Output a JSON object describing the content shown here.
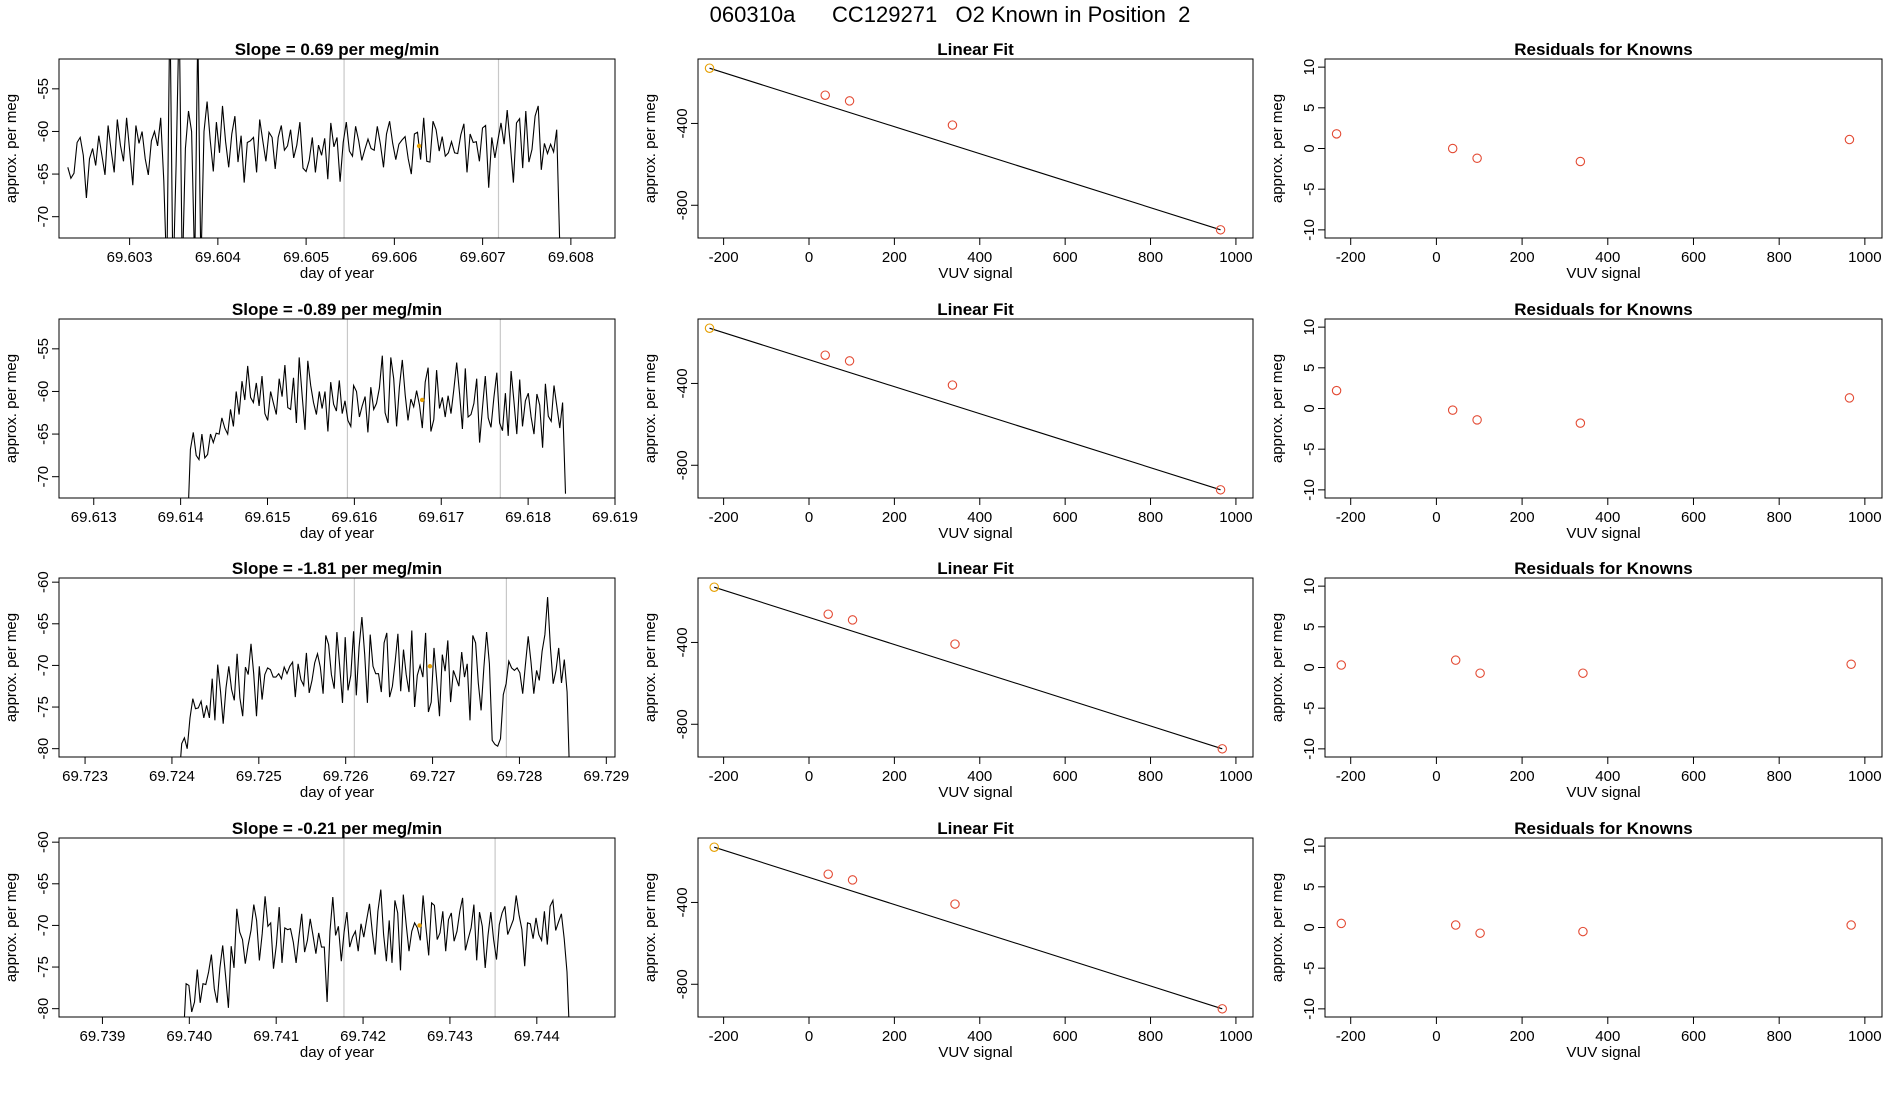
{
  "title": "060310a      CC129271   O2 Known in Position  2",
  "colors": {
    "line": "#000000",
    "frame": "#000000",
    "grid": "#c8c8c8",
    "highlight": "#e69f00",
    "residual": "#e34a33"
  },
  "chart_data": [
    {
      "type": "line",
      "row": 1,
      "title": "Slope =  0.69  per meg/min",
      "xlabel": "day of year",
      "ylabel": "approx. per meg",
      "xlim": [
        69.6022,
        69.6085
      ],
      "ylim": [
        -72.5,
        -51.5
      ],
      "xticks": [
        "69.603",
        "69.604",
        "69.605",
        "69.606",
        "69.607",
        "69.608"
      ],
      "yticks": [
        "-55",
        "-60",
        "-65",
        "-70"
      ],
      "vlines": [
        69.60543,
        69.60718
      ],
      "series_x_range": [
        69.6023,
        69.60791
      ],
      "series": [
        -64.2,
        -65.5,
        -64.9,
        -61.3,
        -60.7,
        -62.8,
        -67.8,
        -63.2,
        -62.0,
        -64.0,
        -60.5,
        -62.8,
        -65.1,
        -59.3,
        -62.2,
        -64.8,
        -58.6,
        -61.6,
        -63.5,
        -58.4,
        -62.3,
        -66.3,
        -59.3,
        -61.4,
        -60.0,
        -63.2,
        -65.1,
        -61.1,
        -60.0,
        -61.7,
        -58.4,
        -65.8,
        -77.0,
        -45.0,
        -78.0,
        -64.0,
        -46.0,
        -77.0,
        -62.0,
        -57.6,
        -60.0,
        -76.0,
        -48.0,
        -76.0,
        -60.0,
        -56.5,
        -61.0,
        -64.7,
        -58.9,
        -62.5,
        -57.0,
        -61.2,
        -64.2,
        -60.3,
        -58.2,
        -63.6,
        -60.5,
        -66.0,
        -61.3,
        -61.1,
        -60.7,
        -64.8,
        -58.6,
        -61.1,
        -63.5,
        -60.1,
        -60.7,
        -64.4,
        -60.7,
        -59.3,
        -62.2,
        -61.7,
        -59.8,
        -63.1,
        -61.6,
        -58.9,
        -64.3,
        -64.7,
        -63.4,
        -60.7,
        -64.8,
        -61.6,
        -62.8,
        -60.8,
        -65.6,
        -59.0,
        -61.8,
        -60.7,
        -65.9,
        -61.3,
        -58.9,
        -62.3,
        -62.9,
        -59.4,
        -61.1,
        -63.4,
        -62.1,
        -60.9,
        -62.0,
        -62.2,
        -59.4,
        -61.5,
        -64.2,
        -60.3,
        -58.8,
        -61.4,
        -63.3,
        -61.5,
        -61.0,
        -60.6,
        -63.2,
        -65.0,
        -60.3,
        -60.1,
        -63.3,
        -58.4,
        -63.5,
        -63.6,
        -58.8,
        -59.8,
        -62.3,
        -60.6,
        -62.9,
        -62.5,
        -61.2,
        -62.5,
        -62.6,
        -60.4,
        -59.1,
        -64.8,
        -60.3,
        -61.3,
        -61.2,
        -63.5,
        -59.6,
        -59.3,
        -66.6,
        -60.7,
        -63.1,
        -61.0,
        -59.0,
        -61.5,
        -57.5,
        -61.5,
        -66.0,
        -59.0,
        -58.5,
        -64.3,
        -57.6,
        -63.6,
        -62.1,
        -58.2,
        -57.0,
        -64.5,
        -61.4,
        -62.6,
        -61.5,
        -62.4,
        -59.8,
        -73.5,
        -80.0
      ],
      "marker": {
        "x": 69.60628,
        "y": -61.7
      }
    },
    {
      "type": "line",
      "row": 2,
      "title": "Slope =  -0.89  per meg/min",
      "xlabel": "day of year",
      "ylabel": "approx. per meg",
      "xlim": [
        69.6126,
        69.619
      ],
      "ylim": [
        -72.5,
        -51.5
      ],
      "xticks": [
        "69.613",
        "69.614",
        "69.615",
        "69.616",
        "69.617",
        "69.618",
        "69.619"
      ],
      "yticks": [
        "-55",
        "-60",
        "-65",
        "-70"
      ],
      "vlines": [
        69.61592,
        69.61768
      ],
      "series_x_range": [
        69.61408,
        69.61843
      ],
      "series": [
        -76.0,
        -66.8,
        -64.8,
        -67.5,
        -68.0,
        -65.0,
        -67.8,
        -67.4,
        -65.0,
        -66.0,
        -64.9,
        -65.0,
        -63.1,
        -64.3,
        -65.0,
        -62.1,
        -64.1,
        -60.0,
        -62.7,
        -58.8,
        -61.0,
        -57.0,
        -60.7,
        -61.3,
        -59.0,
        -61.7,
        -58.2,
        -62.6,
        -63.4,
        -60.0,
        -61.4,
        -62.7,
        -58.5,
        -60.6,
        -56.9,
        -61.9,
        -62.1,
        -58.4,
        -63.7,
        -56.0,
        -60.4,
        -64.5,
        -56.4,
        -59.3,
        -61.3,
        -62.7,
        -60.0,
        -62.0,
        -60.0,
        -64.7,
        -58.9,
        -61.5,
        -62.3,
        -58.7,
        -62.6,
        -61.1,
        -63.4,
        -64.1,
        -59.3,
        -60.0,
        -63.0,
        -61.7,
        -60.6,
        -64.8,
        -59.5,
        -62.1,
        -61.4,
        -59.6,
        -55.8,
        -62.5,
        -63.7,
        -56.0,
        -58.5,
        -64.1,
        -59.5,
        -56.3,
        -60.4,
        -63.4,
        -60.9,
        -61.8,
        -59.9,
        -61.6,
        -64.3,
        -58.9,
        -57.2,
        -64.7,
        -63.3,
        -57.5,
        -62.0,
        -60.7,
        -63.0,
        -60.5,
        -62.6,
        -59.8,
        -56.6,
        -60.3,
        -64.4,
        -57.3,
        -63.0,
        -62.7,
        -61.4,
        -58.5,
        -66.0,
        -61.9,
        -58.2,
        -63.1,
        -64.2,
        -60.7,
        -57.8,
        -63.7,
        -64.6,
        -60.2,
        -65.2,
        -57.6,
        -61.1,
        -65.0,
        -58.6,
        -64.1,
        -61.1,
        -60.2,
        -63.0,
        -65.0,
        -60.3,
        -61.6,
        -66.6,
        -59.1,
        -62.9,
        -63.5,
        -59.3,
        -61.8,
        -64.3,
        -61.3,
        -72.0
      ],
      "marker": {
        "x": 69.61678,
        "y": -61.0
      }
    },
    {
      "type": "line",
      "row": 3,
      "title": "Slope =  -1.81  per meg/min",
      "xlabel": "day of year",
      "ylabel": "approx. per meg",
      "xlim": [
        69.7227,
        69.7291
      ],
      "ylim": [
        -81.0,
        -59.5
      ],
      "xticks": [
        "69.723",
        "69.724",
        "69.725",
        "69.726",
        "69.727",
        "69.728",
        "69.729"
      ],
      "yticks": [
        "-60",
        "-65",
        "-70",
        "-75",
        "-80"
      ],
      "vlines": [
        69.7261,
        69.72785
      ],
      "series_x_range": [
        69.72408,
        69.72858
      ],
      "series": [
        -84.0,
        -79.4,
        -78.7,
        -80.0,
        -76.3,
        -74.0,
        -75.2,
        -75.1,
        -74.3,
        -76.3,
        -74.8,
        -76.3,
        -71.6,
        -76.6,
        -69.9,
        -73.1,
        -77.0,
        -72.7,
        -70.1,
        -72.9,
        -74.2,
        -68.6,
        -73.9,
        -76.1,
        -70.2,
        -71.1,
        -67.4,
        -71.0,
        -76.1,
        -70.1,
        -74.1,
        -71.1,
        -70.3,
        -70.5,
        -71.4,
        -71.4,
        -71.0,
        -71.6,
        -70.2,
        -71.0,
        -70.1,
        -69.6,
        -73.8,
        -69.8,
        -71.7,
        -72.4,
        -68.5,
        -73.3,
        -71.8,
        -69.7,
        -68.6,
        -70.2,
        -73.4,
        -66.4,
        -67.5,
        -71.1,
        -72.8,
        -66.0,
        -70.1,
        -74.5,
        -66.6,
        -73.0,
        -71.2,
        -65.9,
        -73.6,
        -67.8,
        -64.2,
        -68.7,
        -74.5,
        -66.3,
        -70.1,
        -71.0,
        -71.0,
        -73.2,
        -67.3,
        -66.1,
        -73.8,
        -72.5,
        -69.5,
        -66.2,
        -73.1,
        -68.1,
        -71.1,
        -73.2,
        -65.8,
        -75.0,
        -71.2,
        -70.0,
        -71.4,
        -66.1,
        -75.6,
        -74.4,
        -67.9,
        -71.7,
        -76.1,
        -68.7,
        -70.7,
        -67.0,
        -74.4,
        -70.6,
        -71.5,
        -72.5,
        -68.4,
        -71.4,
        -69.8,
        -76.6,
        -66.4,
        -67.3,
        -72.1,
        -75.4,
        -70.2,
        -66.0,
        -69.8,
        -79.0,
        -79.5,
        -79.7,
        -78.8,
        -73.5,
        -72.2,
        -69.5,
        -70.3,
        -70.6,
        -70.3,
        -70.9,
        -73.4,
        -69.8,
        -66.5,
        -69.6,
        -73.4,
        -70.6,
        -71.8,
        -68.3,
        -66.3,
        -61.8,
        -67.8,
        -72.2,
        -70.6,
        -67.9,
        -72.1,
        -69.3,
        -73.2,
        -84.0
      ],
      "marker": {
        "x": 69.72697,
        "y": -70.1
      }
    },
    {
      "type": "line",
      "row": 4,
      "title": "Slope =  -0.21  per meg/min",
      "xlabel": "day of year",
      "ylabel": "approx. per meg",
      "xlim": [
        69.7385,
        69.7449
      ],
      "ylim": [
        -81.0,
        -59.5
      ],
      "xticks": [
        "69.739",
        "69.740",
        "69.741",
        "69.742",
        "69.743",
        "69.744"
      ],
      "yticks": [
        "-60",
        "-65",
        "-70",
        "-75",
        "-80"
      ],
      "vlines": [
        69.74178,
        69.74352
      ],
      "series_x_range": [
        69.73993,
        69.74438
      ],
      "series": [
        -84.0,
        -77.0,
        -77.2,
        -80.4,
        -79.2,
        -75.3,
        -79.3,
        -77.0,
        -77.1,
        -75.6,
        -73.5,
        -77.6,
        -79.3,
        -75.1,
        -72.4,
        -76.1,
        -79.9,
        -72.5,
        -75.1,
        -68.0,
        -70.8,
        -71.7,
        -74.6,
        -72.4,
        -70.6,
        -67.5,
        -69.4,
        -74.2,
        -71.0,
        -66.5,
        -70.1,
        -69.7,
        -75.2,
        -72.3,
        -67.8,
        -74.5,
        -70.3,
        -70.5,
        -70.4,
        -72.0,
        -74.5,
        -71.4,
        -68.6,
        -73.2,
        -71.8,
        -69.2,
        -71.2,
        -73.4,
        -70.9,
        -72.6,
        -72.6,
        -79.2,
        -70.7,
        -66.6,
        -71.2,
        -70.1,
        -74.3,
        -70.8,
        -68.4,
        -72.6,
        -71.4,
        -70.7,
        -73.1,
        -69.8,
        -71.4,
        -69.3,
        -67.4,
        -70.8,
        -73.5,
        -68.3,
        -65.7,
        -71.1,
        -74.3,
        -69.4,
        -74.5,
        -67.0,
        -68.5,
        -75.4,
        -66.3,
        -69.9,
        -73.1,
        -70.7,
        -69.7,
        -70.3,
        -71.8,
        -66.4,
        -70.2,
        -73.6,
        -67.3,
        -67.6,
        -71.7,
        -70.9,
        -68.3,
        -73.1,
        -69.3,
        -68.5,
        -71.9,
        -70.7,
        -68.3,
        -66.7,
        -73.0,
        -71.6,
        -70.3,
        -67.5,
        -74.2,
        -68.4,
        -70.1,
        -75.1,
        -71.2,
        -68.4,
        -71.7,
        -74.1,
        -69.9,
        -68.5,
        -67.7,
        -71.1,
        -70.2,
        -69.3,
        -66.4,
        -68.7,
        -70.5,
        -74.9,
        -69.7,
        -69.8,
        -71.6,
        -69.1,
        -71.1,
        -71.8,
        -68.3,
        -72.3,
        -67.7,
        -67.0,
        -70.6,
        -69.6,
        -68.6,
        -71.6,
        -75.6,
        -84.0
      ],
      "marker": {
        "x": 69.74265,
        "y": -70.0
      }
    },
    {
      "type": "line",
      "row": 1,
      "title": "Linear Fit",
      "xlabel": "VUV signal",
      "ylabel": "approx. per meg",
      "xlim": [
        -260,
        1040
      ],
      "ylim": [
        -960,
        -85
      ],
      "xticks": [
        "-200",
        "0",
        "200",
        "400",
        "600",
        "800",
        "1000"
      ],
      "yticks": [
        "-400",
        "-800"
      ],
      "points": [
        {
          "x": -233,
          "y": -130
        },
        {
          "x": 38,
          "y": -262
        },
        {
          "x": 95,
          "y": -290
        },
        {
          "x": 336,
          "y": -408
        },
        {
          "x": 964,
          "y": -920
        }
      ],
      "fit": [
        [
          -233,
          -130
        ],
        [
          964,
          -920
        ]
      ]
    },
    {
      "type": "line",
      "row": 2,
      "title": "Linear Fit",
      "xlabel": "VUV signal",
      "ylabel": "approx. per meg",
      "xlim": [
        -260,
        1040
      ],
      "ylim": [
        -960,
        -85
      ],
      "xticks": [
        "-200",
        "0",
        "200",
        "400",
        "600",
        "800",
        "1000"
      ],
      "yticks": [
        "-400",
        "-800"
      ],
      "points": [
        {
          "x": -233,
          "y": -130
        },
        {
          "x": 38,
          "y": -262
        },
        {
          "x": 95,
          "y": -290
        },
        {
          "x": 336,
          "y": -408
        },
        {
          "x": 964,
          "y": -920
        }
      ],
      "fit": [
        [
          -233,
          -130
        ],
        [
          964,
          -920
        ]
      ]
    },
    {
      "type": "line",
      "row": 3,
      "title": "Linear Fit",
      "xlabel": "VUV signal",
      "ylabel": "approx. per meg",
      "xlim": [
        -260,
        1040
      ],
      "ylim": [
        -960,
        -85
      ],
      "xticks": [
        "-200",
        "0",
        "200",
        "400",
        "600",
        "800",
        "1000"
      ],
      "yticks": [
        "-400",
        "-800"
      ],
      "points": [
        {
          "x": -222,
          "y": -130
        },
        {
          "x": 45,
          "y": -262
        },
        {
          "x": 102,
          "y": -290
        },
        {
          "x": 342,
          "y": -408
        },
        {
          "x": 968,
          "y": -920
        }
      ],
      "fit": [
        [
          -222,
          -130
        ],
        [
          968,
          -920
        ]
      ]
    },
    {
      "type": "line",
      "row": 4,
      "title": "Linear Fit",
      "xlabel": "VUV signal",
      "ylabel": "approx. per meg",
      "xlim": [
        -260,
        1040
      ],
      "ylim": [
        -960,
        -85
      ],
      "xticks": [
        "-200",
        "0",
        "200",
        "400",
        "600",
        "800",
        "1000"
      ],
      "yticks": [
        "-400",
        "-800"
      ],
      "points": [
        {
          "x": -222,
          "y": -130
        },
        {
          "x": 45,
          "y": -262
        },
        {
          "x": 102,
          "y": -290
        },
        {
          "x": 342,
          "y": -408
        },
        {
          "x": 968,
          "y": -920
        }
      ],
      "fit": [
        [
          -222,
          -130
        ],
        [
          968,
          -920
        ]
      ]
    },
    {
      "type": "scatter",
      "row": 1,
      "title": "Residuals for Knowns",
      "xlabel": "VUV signal",
      "ylabel": "approx. per meg",
      "xlim": [
        -260,
        1040
      ],
      "ylim": [
        -11,
        11
      ],
      "xticks": [
        "-200",
        "0",
        "200",
        "400",
        "600",
        "800",
        "1000"
      ],
      "yticks": [
        "10",
        "5",
        "0",
        "-5",
        "-10"
      ],
      "points": [
        {
          "x": -233,
          "y": 1.8
        },
        {
          "x": 38,
          "y": 0.0
        },
        {
          "x": 95,
          "y": -1.2
        },
        {
          "x": 336,
          "y": -1.6
        },
        {
          "x": 964,
          "y": 1.1
        }
      ]
    },
    {
      "type": "scatter",
      "row": 2,
      "title": "Residuals for Knowns",
      "xlabel": "VUV signal",
      "ylabel": "approx. per meg",
      "xlim": [
        -260,
        1040
      ],
      "ylim": [
        -11,
        11
      ],
      "xticks": [
        "-200",
        "0",
        "200",
        "400",
        "600",
        "800",
        "1000"
      ],
      "yticks": [
        "10",
        "5",
        "0",
        "-5",
        "-10"
      ],
      "points": [
        {
          "x": -233,
          "y": 2.2
        },
        {
          "x": 38,
          "y": -0.2
        },
        {
          "x": 95,
          "y": -1.4
        },
        {
          "x": 336,
          "y": -1.8
        },
        {
          "x": 964,
          "y": 1.3
        }
      ]
    },
    {
      "type": "scatter",
      "row": 3,
      "title": "Residuals for Knowns",
      "xlabel": "VUV signal",
      "ylabel": "approx. per meg",
      "xlim": [
        -260,
        1040
      ],
      "ylim": [
        -11,
        11
      ],
      "xticks": [
        "-200",
        "0",
        "200",
        "400",
        "600",
        "800",
        "1000"
      ],
      "yticks": [
        "10",
        "5",
        "0",
        "-5",
        "-10"
      ],
      "points": [
        {
          "x": -222,
          "y": 0.3
        },
        {
          "x": 45,
          "y": 0.9
        },
        {
          "x": 102,
          "y": -0.7
        },
        {
          "x": 342,
          "y": -0.7
        },
        {
          "x": 968,
          "y": 0.4
        }
      ]
    },
    {
      "type": "scatter",
      "row": 4,
      "title": "Residuals for Knowns",
      "xlabel": "VUV signal",
      "ylabel": "approx. per meg",
      "xlim": [
        -260,
        1040
      ],
      "ylim": [
        -11,
        11
      ],
      "xticks": [
        "-200",
        "0",
        "200",
        "400",
        "600",
        "800",
        "1000"
      ],
      "yticks": [
        "10",
        "5",
        "0",
        "-5",
        "-10"
      ],
      "points": [
        {
          "x": -222,
          "y": 0.5
        },
        {
          "x": 45,
          "y": 0.3
        },
        {
          "x": 102,
          "y": -0.7
        },
        {
          "x": 342,
          "y": -0.5
        },
        {
          "x": 968,
          "y": 0.3
        }
      ]
    }
  ]
}
